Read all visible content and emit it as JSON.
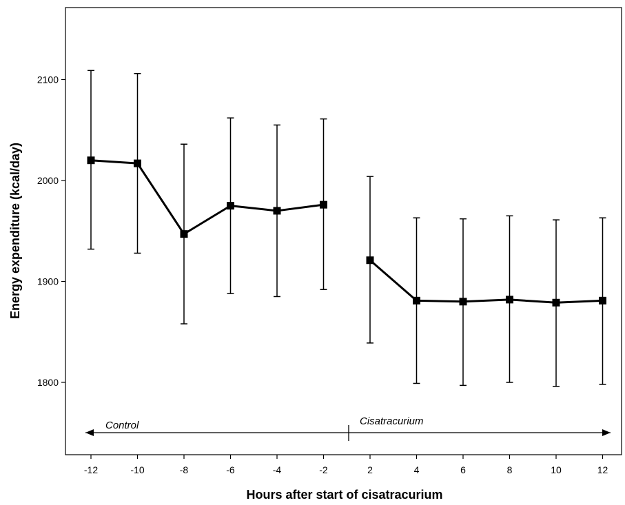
{
  "chart_data": {
    "type": "line",
    "title": "",
    "xlabel": "Hours after start of cisatracurium",
    "ylabel": "Energy expenditure (kcal/day)",
    "ylim": [
      1735,
      2170
    ],
    "yticks": [
      1800,
      1900,
      2000,
      2100
    ],
    "x_tick_labels": [
      "-12",
      "-10",
      "-8",
      "-6",
      "-4",
      "-2",
      "2",
      "4",
      "6",
      "8",
      "10",
      "12"
    ],
    "grid": false,
    "marker": "square",
    "series": [
      {
        "name": "",
        "segment": "control",
        "x": [
          -12,
          -10,
          -8,
          -6,
          -4,
          -2
        ],
        "y": [
          2020,
          2017,
          1947,
          1975,
          1970,
          1976
        ],
        "err_low": [
          1932,
          1928,
          1858,
          1888,
          1885,
          1892
        ],
        "err_high": [
          2109,
          2106,
          2036,
          2062,
          2055,
          2061
        ]
      },
      {
        "name": "",
        "segment": "cisatracurium",
        "x": [
          2,
          4,
          6,
          8,
          10,
          12
        ],
        "y": [
          1921,
          1881,
          1880,
          1882,
          1879,
          1881
        ],
        "err_low": [
          1839,
          1799,
          1797,
          1800,
          1796,
          1798
        ],
        "err_high": [
          2004,
          1963,
          1962,
          1965,
          1961,
          1963
        ]
      }
    ],
    "annotations": {
      "control_label": "Control",
      "cisatracurium_label": "Cisatracurium"
    }
  }
}
